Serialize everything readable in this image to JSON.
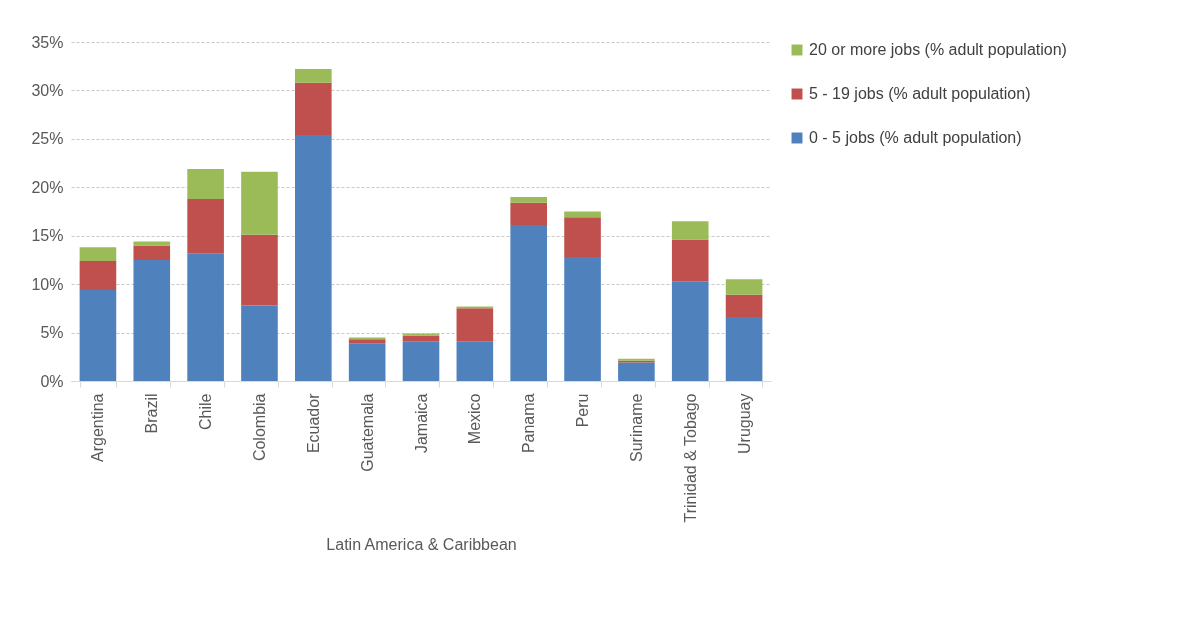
{
  "chart_data": {
    "type": "bar",
    "stacked": true,
    "xlabel": "Latin America & Caribbean",
    "categories": [
      "Argentina",
      "Brazil",
      "Chile",
      "Colombia",
      "Ecuador",
      "Guatemala",
      "Jamaica",
      "Mexico",
      "Panama",
      "Peru",
      "Suriname",
      "Trinidad & Tobago",
      "Uruguay"
    ],
    "series": [
      {
        "name": "0 - 5 jobs (% adult population)",
        "color": "#4f81bd",
        "values": [
          9.4,
          12.5,
          13.2,
          7.8,
          25.4,
          3.9,
          4.1,
          4.1,
          16.1,
          12.8,
          1.9,
          10.3,
          6.6
        ]
      },
      {
        "name": "5 - 19 jobs  (% adult population)",
        "color": "#c0504d",
        "values": [
          3.0,
          1.5,
          5.6,
          7.3,
          5.4,
          0.4,
          0.6,
          3.4,
          2.3,
          4.1,
          0.2,
          4.3,
          2.3
        ]
      },
      {
        "name": "20 or more jobs  (% adult population)",
        "color": "#9bbb59",
        "values": [
          1.4,
          0.4,
          3.1,
          6.5,
          1.4,
          0.2,
          0.2,
          0.2,
          0.6,
          0.6,
          0.2,
          1.9,
          1.6
        ]
      }
    ],
    "ylim": [
      0,
      35
    ],
    "yticks": [
      {
        "value": 0,
        "label": "0%"
      },
      {
        "value": 5,
        "label": "5%"
      },
      {
        "value": 10,
        "label": "10%"
      },
      {
        "value": 15,
        "label": "15%"
      },
      {
        "value": 20,
        "label": "20%"
      },
      {
        "value": 25,
        "label": "25%"
      },
      {
        "value": 30,
        "label": "30%"
      },
      {
        "value": 35,
        "label": "35%"
      }
    ],
    "grid": "y",
    "legend": "right"
  }
}
